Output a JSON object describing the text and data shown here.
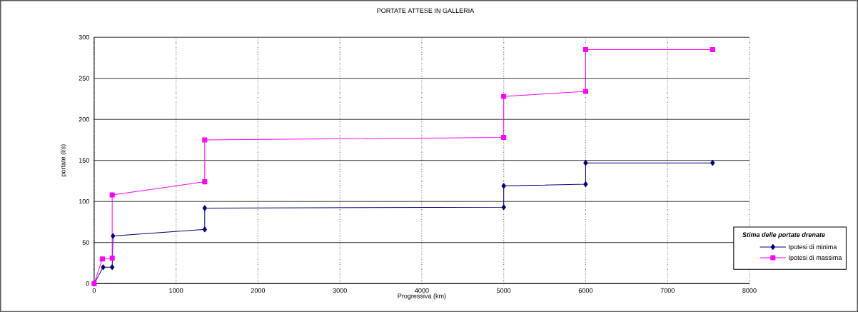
{
  "chart_data": {
    "type": "line",
    "title": "PORTATE ATTESE IN GALLERIA",
    "xlabel": "Progressiva (km)",
    "ylabel": "portate (l/s)",
    "legend_title": "Stima delle portate drenate",
    "x": [
      0,
      110,
      220,
      230,
      1350,
      1350,
      5000,
      5000,
      6000,
      6000,
      7550
    ],
    "series": [
      {
        "name": "Ipotesi di minima",
        "color": "#000080",
        "marker": "diamond",
        "values": [
          0,
          20,
          20,
          58,
          66,
          92,
          93,
          119,
          121,
          147,
          147
        ]
      },
      {
        "name": "Ipotesi di massima",
        "color": "#ff00ff",
        "marker": "square",
        "x": [
          0,
          100,
          220,
          220,
          1350,
          1350,
          5000,
          5000,
          6000,
          6000,
          7550
        ],
        "values": [
          0,
          30,
          31,
          108,
          124,
          175,
          178,
          228,
          234,
          285,
          285
        ]
      }
    ],
    "xlim": [
      0,
      8000
    ],
    "xticks": [
      0,
      1000,
      2000,
      3000,
      4000,
      5000,
      6000,
      7000,
      8000
    ],
    "ylim": [
      0,
      300
    ],
    "yticks": [
      0,
      50,
      100,
      150,
      200,
      250,
      300
    ],
    "grid": true,
    "legend": "bottom right",
    "line_style": "solid"
  }
}
